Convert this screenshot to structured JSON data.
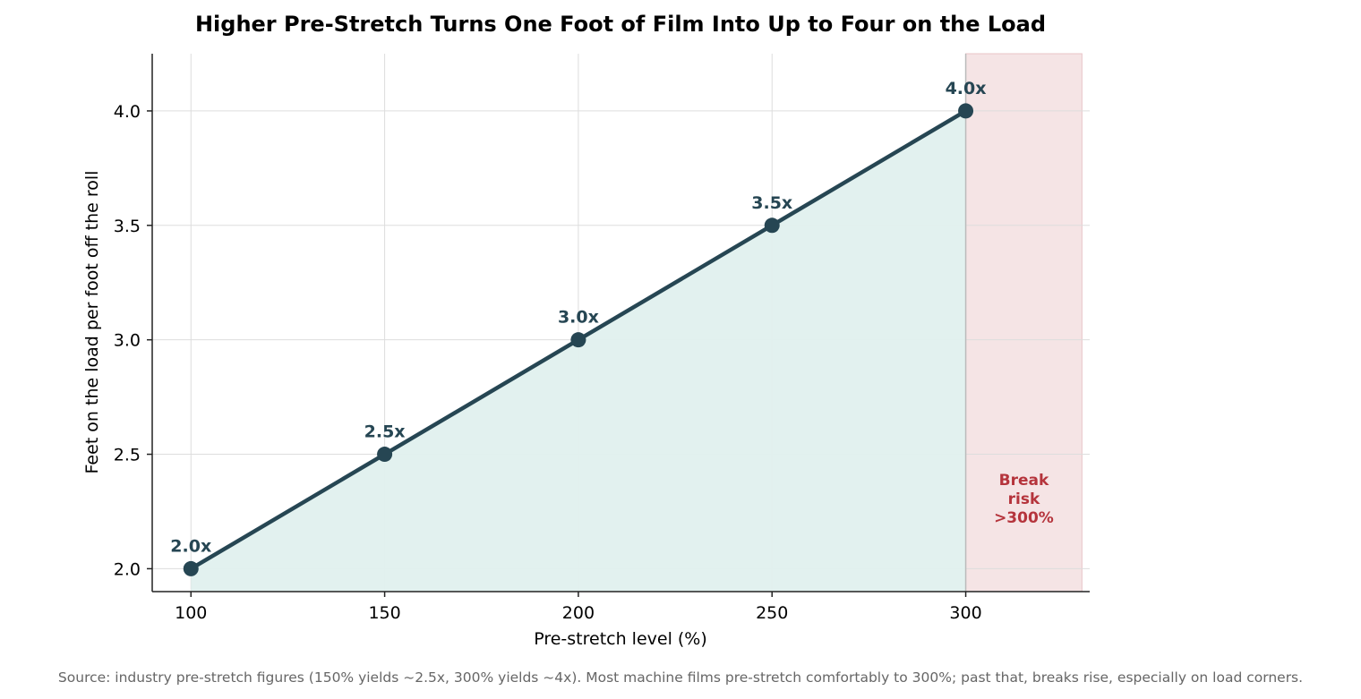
{
  "chart_data": {
    "type": "line",
    "title": "Higher Pre-Stretch Turns One Foot of Film Into Up to Four on the Load",
    "xlabel": "Pre-stretch level (%)",
    "ylabel": "Feet on the load per foot off the roll",
    "x": [
      100,
      150,
      200,
      250,
      300
    ],
    "y": [
      2.0,
      2.5,
      3.0,
      3.5,
      4.0
    ],
    "point_labels": [
      "2.0x",
      "2.5x",
      "3.0x",
      "3.5x",
      "4.0x"
    ],
    "xlim": [
      90,
      332
    ],
    "ylim": [
      1.9,
      4.25
    ],
    "x_ticks": [
      100,
      150,
      200,
      250,
      300
    ],
    "x_tick_labels": [
      "100",
      "150",
      "200",
      "250",
      "300"
    ],
    "y_ticks": [
      2.0,
      2.5,
      3.0,
      3.5,
      4.0
    ],
    "y_tick_labels": [
      "2.0",
      "2.5",
      "3.0",
      "3.5",
      "4.0"
    ],
    "grid": true,
    "legend": null,
    "colors": {
      "line": "#264653",
      "fill": "#e0f0ee",
      "zone": "#f5e4e5",
      "zone_text": "#b5343c"
    },
    "shaded_region": {
      "x_start": 300,
      "x_end": 330,
      "label_lines": [
        "Break",
        "risk",
        ">300%"
      ]
    },
    "source": "Source: industry pre-stretch figures (150% yields ~2.5x, 300% yields ~4x). Most machine films pre-stretch comfortably to 300%; past that, breaks rise, especially on load corners."
  }
}
